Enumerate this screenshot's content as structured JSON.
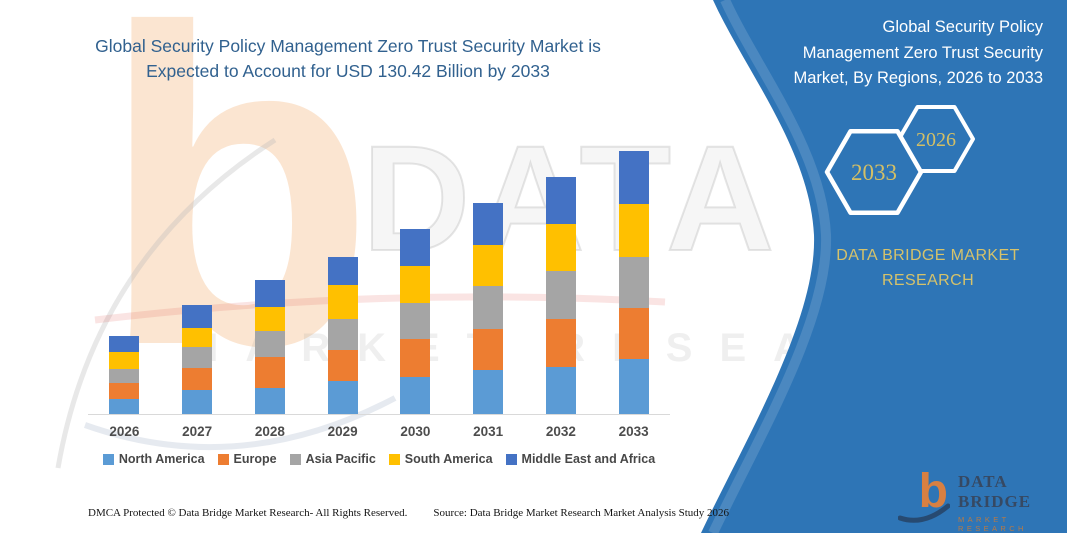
{
  "main_title": {
    "line1": "Global Security Policy Management Zero Trust Security Market is",
    "line2": "Expected to Account for USD 130.42 Billion by 2033"
  },
  "side_panel": {
    "bg_color": "#2E75B6",
    "accent_text_color": "#D5C26B",
    "title_lines": [
      "Global Security Policy",
      "Management Zero Trust Security",
      "Market, By Regions, 2026 to 2033"
    ],
    "hexagons": [
      {
        "label": "2033"
      },
      {
        "label": "2026"
      }
    ],
    "brand_line1": "DATA BRIDGE MARKET",
    "brand_line2": "RESEARCH"
  },
  "watermark": {
    "monogram": "b",
    "big_text": "DATA BRI",
    "sub_text": "MARKET RESEARCH"
  },
  "logo": {
    "monogram": "b",
    "name": "DATA BRIDGE",
    "tagline": "MARKET RESEARCH"
  },
  "footer": {
    "left": "DMCA Protected © Data Bridge Market Research-  All Rights Reserved.",
    "right": "Source: Data Bridge Market Research  Market Analysis Study 2026"
  },
  "chart_data": {
    "type": "bar",
    "variant": "stacked-column",
    "title": "Global Security Policy Management Zero Trust Security Market, By Regions, 2026 to 2033",
    "unit": "USD Billion",
    "categories": [
      "2026",
      "2027",
      "2028",
      "2029",
      "2030",
      "2031",
      "2032",
      "2033"
    ],
    "series": [
      {
        "name": "North America",
        "color": "#5B9BD5",
        "values": [
          7.4,
          11.9,
          12.8,
          16.3,
          18.3,
          21.7,
          23.2,
          27.1
        ]
      },
      {
        "name": "Europe",
        "color": "#ED7D31",
        "values": [
          7.9,
          10.9,
          15.3,
          15.3,
          18.8,
          20.3,
          23.7,
          25.2
        ]
      },
      {
        "name": "Asia Pacific",
        "color": "#A5A5A5",
        "values": [
          6.9,
          10.4,
          12.8,
          15.3,
          17.8,
          21.2,
          23.7,
          25.7
        ]
      },
      {
        "name": "South America",
        "color": "#FFC000",
        "values": [
          8.4,
          9.4,
          11.9,
          16.8,
          18.3,
          20.3,
          23.2,
          26.2
        ]
      },
      {
        "name": "Middle East and Africa",
        "color": "#4472C4",
        "values": [
          7.9,
          11.4,
          13.3,
          14.3,
          18.3,
          21.2,
          23.7,
          26.22
        ]
      }
    ],
    "totals_estimated": [
      38.5,
      54.0,
      66.1,
      78.0,
      91.5,
      104.7,
      117.5,
      130.42
    ],
    "highlight_total_2033": 130.42,
    "xlabel": "",
    "ylabel": "",
    "ylim": [
      0,
      140
    ],
    "grid": false,
    "y_axis_visible": false,
    "legend_position": "bottom",
    "values_are_estimates_from_bar_heights": true
  }
}
